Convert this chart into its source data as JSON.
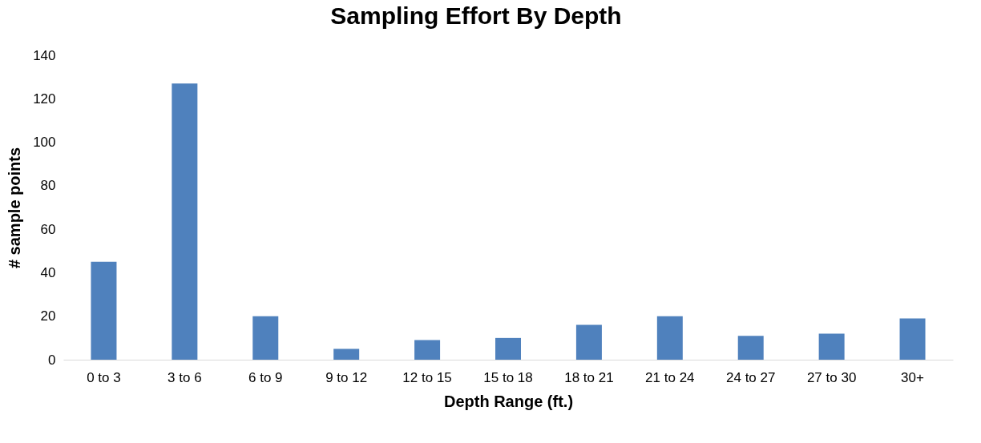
{
  "chart_data": {
    "type": "bar",
    "title": "Sampling Effort By Depth",
    "xlabel": "Depth Range (ft.)",
    "ylabel": "# sample points",
    "categories": [
      "0 to 3",
      "3 to 6",
      "6 to 9",
      "9 to 12",
      "12 to 15",
      "15 to 18",
      "18 to 21",
      "21 to 24",
      "24 to 27",
      "27 to 30",
      "30+"
    ],
    "values": [
      45,
      127,
      20,
      5,
      9,
      10,
      16,
      20,
      11,
      12,
      19
    ],
    "color": "#4f81bd",
    "ylim": [
      0,
      140
    ],
    "yticks": [
      0,
      20,
      40,
      60,
      80,
      100,
      120,
      140
    ],
    "grid": false
  }
}
